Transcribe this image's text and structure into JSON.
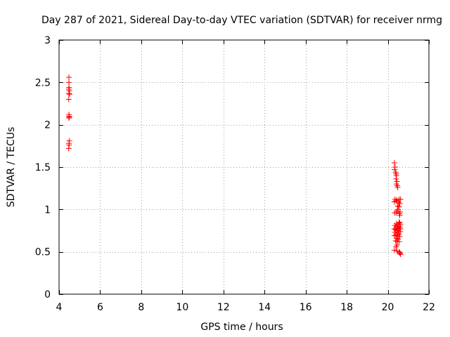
{
  "chart_data": {
    "type": "scatter",
    "title": "Day 287 of 2021, Sidereal Day-to-day VTEC variation (SDTVAR) for receiver nrmg",
    "xlabel": "GPS time / hours",
    "ylabel": "SDTVAR / TECUs",
    "xlim": [
      4,
      22
    ],
    "ylim": [
      0,
      3
    ],
    "xticks": [
      4,
      6,
      8,
      10,
      12,
      14,
      16,
      18,
      20,
      22
    ],
    "yticks": [
      0,
      0.5,
      1,
      1.5,
      2,
      2.5,
      3
    ],
    "xtick_labels": [
      "4",
      "6",
      "8",
      "10",
      "12",
      "14",
      "16",
      "18",
      "20",
      "22"
    ],
    "ytick_labels": [
      "0",
      "0.5",
      "1",
      "1.5",
      "2",
      "2.5",
      "3"
    ],
    "grid": true,
    "marker": "+",
    "color": "#ff0000",
    "series": [
      {
        "name": "SDTVAR",
        "points": [
          [
            4.48,
            2.56
          ],
          [
            4.48,
            2.5
          ],
          [
            4.49,
            2.44
          ],
          [
            4.47,
            2.42
          ],
          [
            4.5,
            2.4
          ],
          [
            4.48,
            2.37
          ],
          [
            4.51,
            2.36
          ],
          [
            4.47,
            2.3
          ],
          [
            4.48,
            2.12
          ],
          [
            4.49,
            2.1
          ],
          [
            4.5,
            2.09
          ],
          [
            4.48,
            2.08
          ],
          [
            4.5,
            1.81
          ],
          [
            4.48,
            1.78
          ],
          [
            4.49,
            1.76
          ],
          [
            4.47,
            1.72
          ],
          [
            20.32,
            1.55
          ],
          [
            20.35,
            1.5
          ],
          [
            20.33,
            1.47
          ],
          [
            20.38,
            1.44
          ],
          [
            20.4,
            1.42
          ],
          [
            20.42,
            1.4
          ],
          [
            20.4,
            1.36
          ],
          [
            20.44,
            1.33
          ],
          [
            20.42,
            1.3
          ],
          [
            20.46,
            1.28
          ],
          [
            20.48,
            1.26
          ],
          [
            20.35,
            1.12
          ],
          [
            20.4,
            1.1
          ],
          [
            20.45,
            1.11
          ],
          [
            20.55,
            1.12
          ],
          [
            20.62,
            1.12
          ],
          [
            20.32,
            1.09
          ],
          [
            20.52,
            1.08
          ],
          [
            20.58,
            1.07
          ],
          [
            20.48,
            1.04
          ],
          [
            20.55,
            1.03
          ],
          [
            20.5,
            1.0
          ],
          [
            20.45,
            0.98
          ],
          [
            20.4,
            0.96
          ],
          [
            20.33,
            0.96
          ],
          [
            20.56,
            0.95
          ],
          [
            20.6,
            0.97
          ],
          [
            20.58,
            0.93
          ],
          [
            20.55,
            0.85
          ],
          [
            20.58,
            0.84
          ],
          [
            20.42,
            0.83
          ],
          [
            20.5,
            0.82
          ],
          [
            20.62,
            0.82
          ],
          [
            20.35,
            0.81
          ],
          [
            20.45,
            0.8
          ],
          [
            20.52,
            0.8
          ],
          [
            20.58,
            0.79
          ],
          [
            20.4,
            0.78
          ],
          [
            20.48,
            0.78
          ],
          [
            20.32,
            0.77
          ],
          [
            20.55,
            0.77
          ],
          [
            20.62,
            0.77
          ],
          [
            20.38,
            0.76
          ],
          [
            20.44,
            0.75
          ],
          [
            20.5,
            0.75
          ],
          [
            20.6,
            0.74
          ],
          [
            20.35,
            0.73
          ],
          [
            20.46,
            0.72
          ],
          [
            20.54,
            0.72
          ],
          [
            20.4,
            0.7
          ],
          [
            20.52,
            0.7
          ],
          [
            20.32,
            0.69
          ],
          [
            20.48,
            0.68
          ],
          [
            20.58,
            0.68
          ],
          [
            20.42,
            0.66
          ],
          [
            20.5,
            0.65
          ],
          [
            20.38,
            0.63
          ],
          [
            20.46,
            0.62
          ],
          [
            20.55,
            0.62
          ],
          [
            20.44,
            0.58
          ],
          [
            20.4,
            0.56
          ],
          [
            20.32,
            0.52
          ],
          [
            20.45,
            0.51
          ],
          [
            20.55,
            0.5
          ],
          [
            20.58,
            0.49
          ],
          [
            20.6,
            0.48
          ],
          [
            20.62,
            0.47
          ]
        ]
      }
    ]
  }
}
